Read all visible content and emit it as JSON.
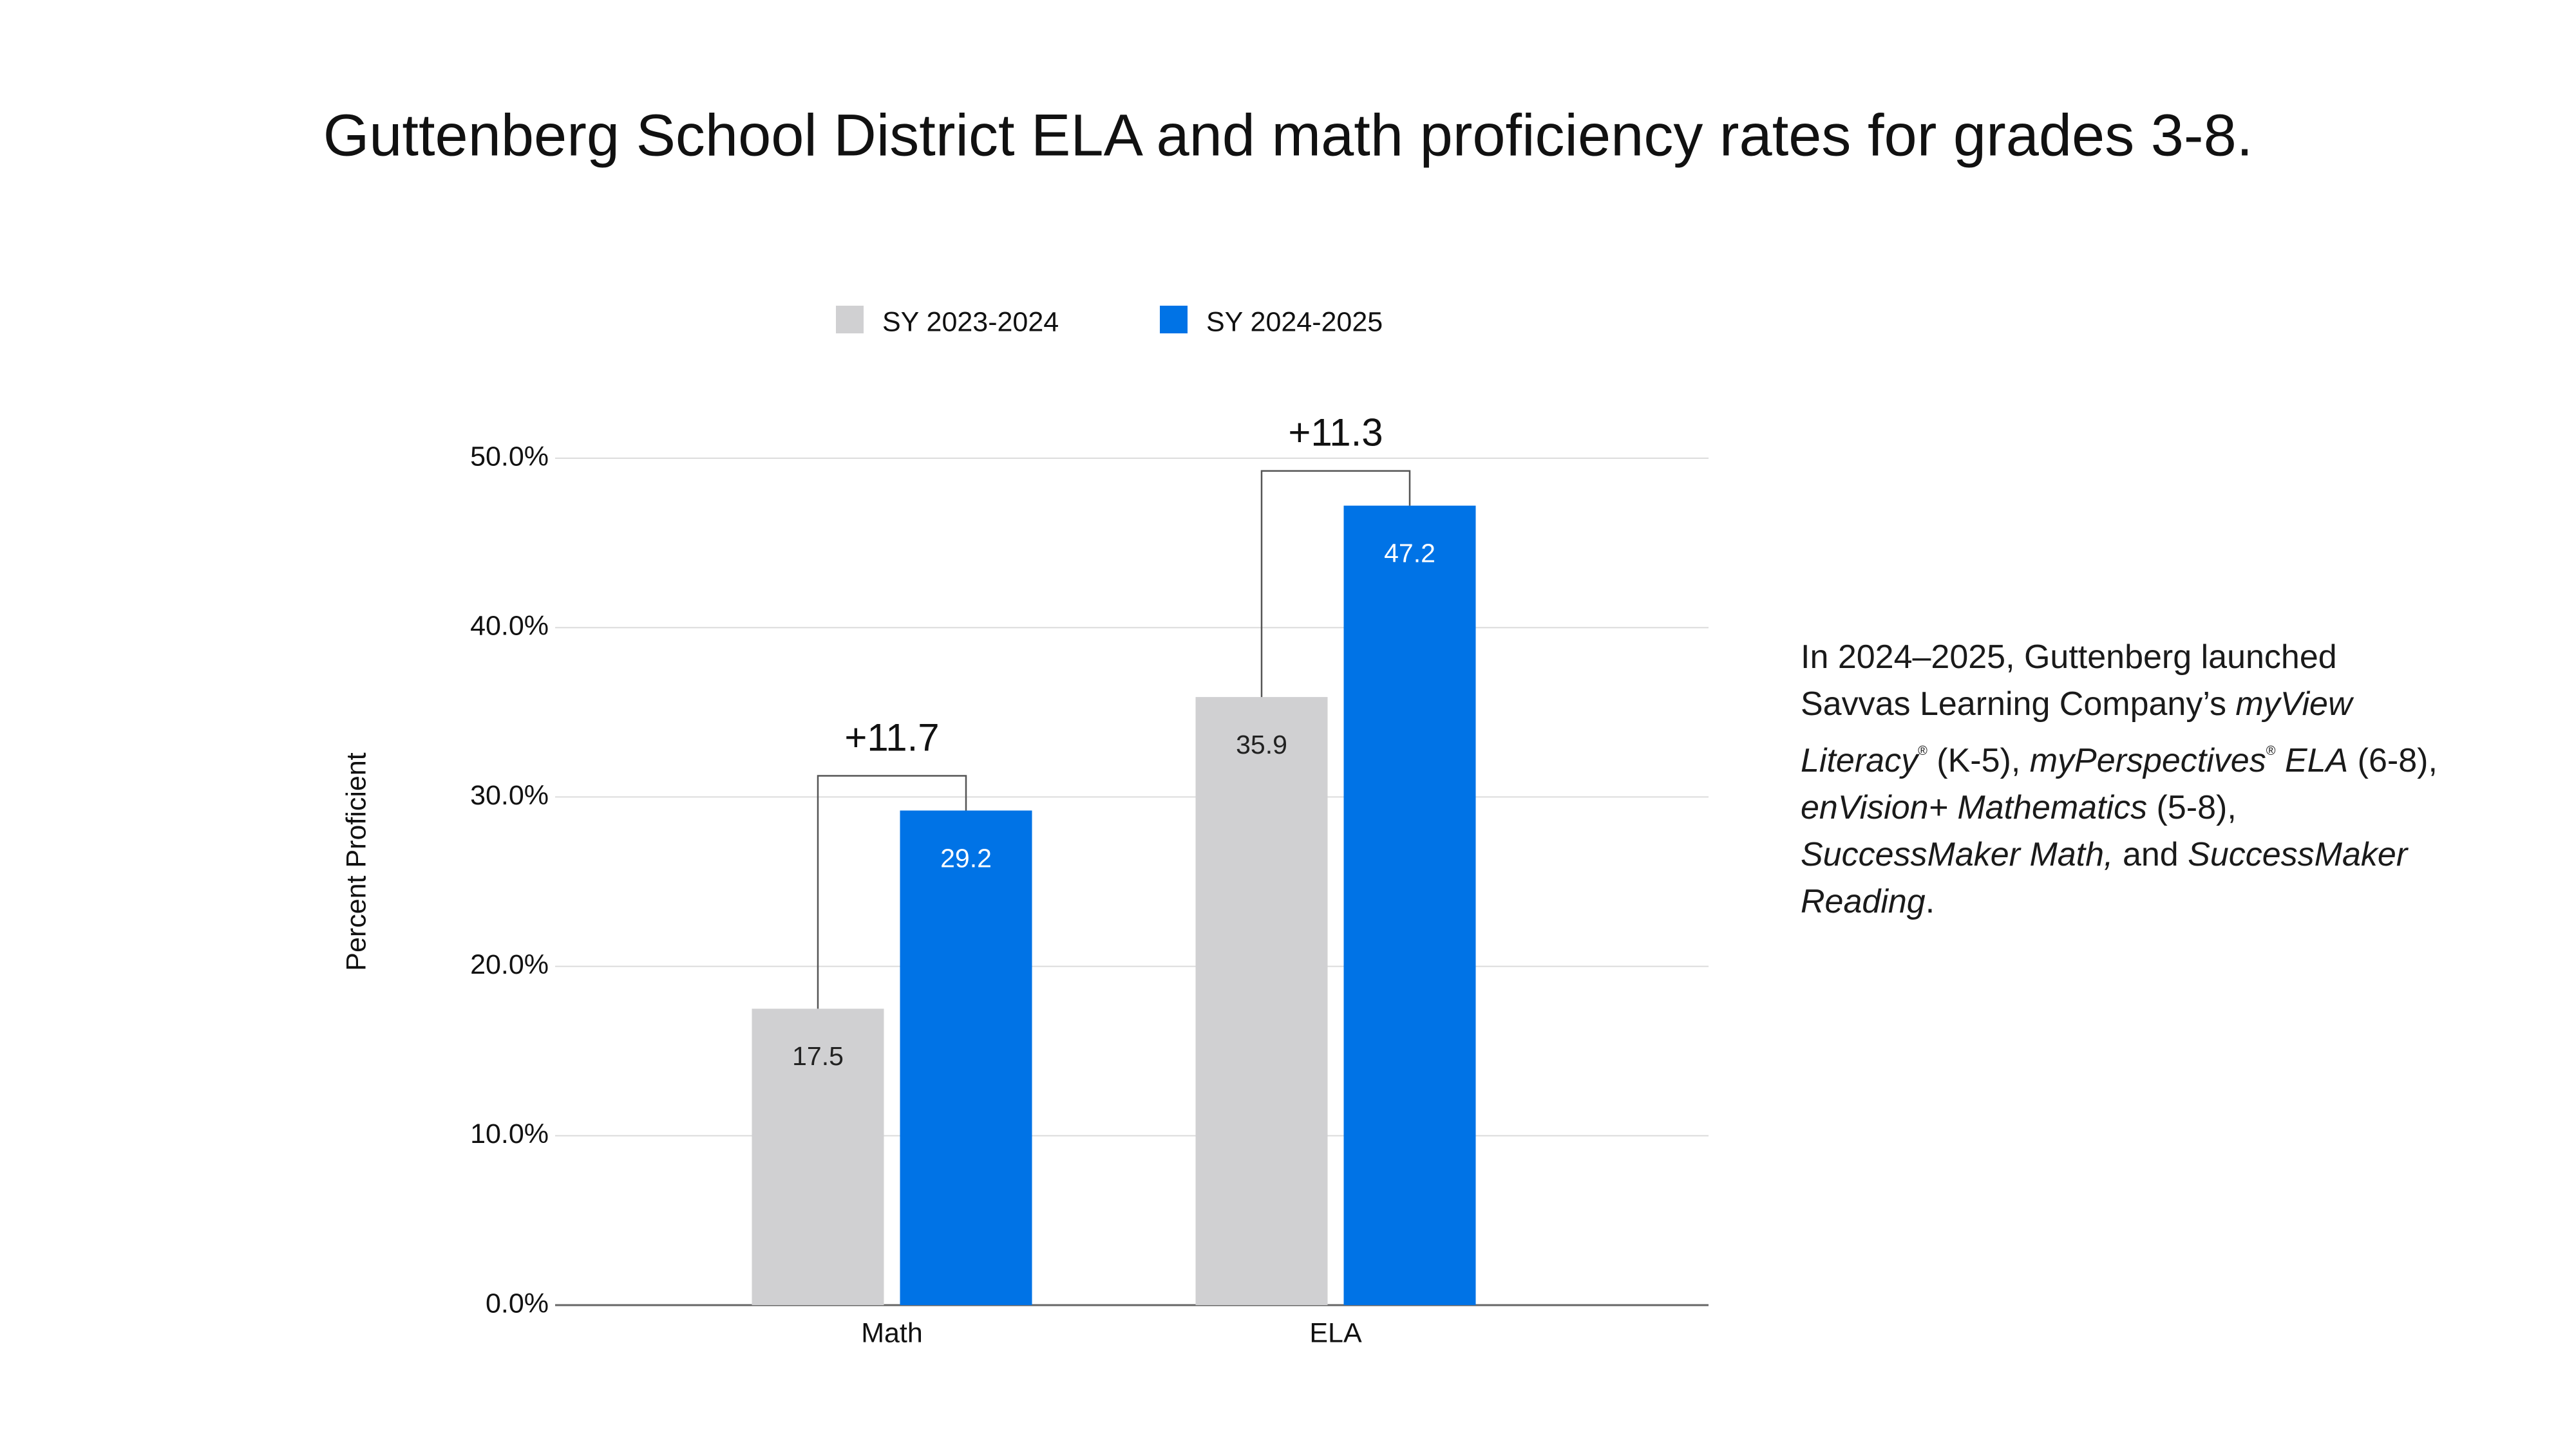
{
  "chart_data": {
    "type": "bar",
    "title": "Guttenberg School District ELA and math proficiency rates for grades 3-8.",
    "y_label": "Percent Proficient",
    "categories": [
      "Math",
      "ELA"
    ],
    "series": [
      {
        "name": "SY 2023-2024",
        "color": "#d0d0d2",
        "label_color": "#222222",
        "values": [
          17.5,
          35.9
        ]
      },
      {
        "name": "SY 2024-2025",
        "color": "#0073e6",
        "label_color": "#ffffff",
        "values": [
          29.2,
          47.2
        ]
      }
    ],
    "annotations": [
      {
        "text": "+11.7"
      },
      {
        "text": "+11.3"
      }
    ],
    "ylim": [
      0,
      50
    ],
    "yticks": [
      {
        "value": 0,
        "label": "0.0%"
      },
      {
        "value": 10,
        "label": "10.0%"
      },
      {
        "value": 20,
        "label": "20.0%"
      },
      {
        "value": 30,
        "label": "30.0%"
      },
      {
        "value": 40,
        "label": "40.0%"
      },
      {
        "value": 50,
        "label": "50.0%"
      }
    ],
    "grid": true
  },
  "note": [
    {
      "text": "In 2024–2025, Guttenberg launched Savvas Learning Company’s ",
      "style": "normal"
    },
    {
      "text": "myView Literacy",
      "style": "italic"
    },
    {
      "text": "®",
      "style": "sup"
    },
    {
      "text": " (K-5), ",
      "style": "normal"
    },
    {
      "text": "myPerspectives",
      "style": "italic"
    },
    {
      "text": "®",
      "style": "sup"
    },
    {
      "text": " ELA",
      "style": "italic"
    },
    {
      "text": " (6-8), ",
      "style": "normal"
    },
    {
      "text": "enVision+ Mathematics",
      "style": "italic"
    },
    {
      "text": " (5-8), ",
      "style": "normal"
    },
    {
      "text": "SuccessMaker Math,",
      "style": "italic"
    },
    {
      "text": " and ",
      "style": "normal"
    },
    {
      "text": "SuccessMaker Reading",
      "style": "italic"
    },
    {
      "text": ".",
      "style": "normal"
    }
  ]
}
